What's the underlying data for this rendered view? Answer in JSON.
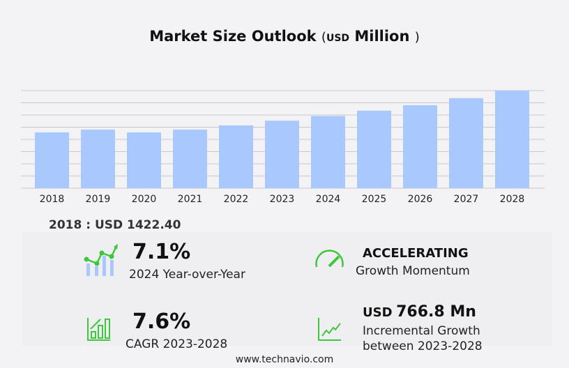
{
  "chart_data": {
    "type": "bar",
    "title": "Market Size Outlook",
    "unit_prefix": "USD",
    "unit": "Million",
    "categories": [
      "2018",
      "2019",
      "2020",
      "2021",
      "2022",
      "2023",
      "2024",
      "2025",
      "2026",
      "2027",
      "2028"
    ],
    "values": [
      1422.4,
      1494,
      1422,
      1494,
      1600,
      1720,
      1840,
      1975,
      2115,
      2295,
      2487
    ],
    "ylim": [
      0,
      2487
    ],
    "grid": true,
    "bar_color": "#a8c8fe"
  },
  "base_label": "2018 : USD  1422.40",
  "kpis": {
    "yoy": {
      "value": "7.1%",
      "label": "2024 Year-over-Year"
    },
    "momentum": {
      "value": "ACCELERATING",
      "label": "Growth Momentum"
    },
    "cagr": {
      "value": "7.6%",
      "label": "CAGR 2023-2028"
    },
    "incremental": {
      "prefix": "USD",
      "value": "766.8 Mn",
      "label1": "Incremental Growth",
      "label2": "between 2023-2028"
    }
  },
  "footer": "www.technavio.com",
  "colors": {
    "accent": "#3cc73c",
    "bar_light": "#a8c8fe"
  }
}
